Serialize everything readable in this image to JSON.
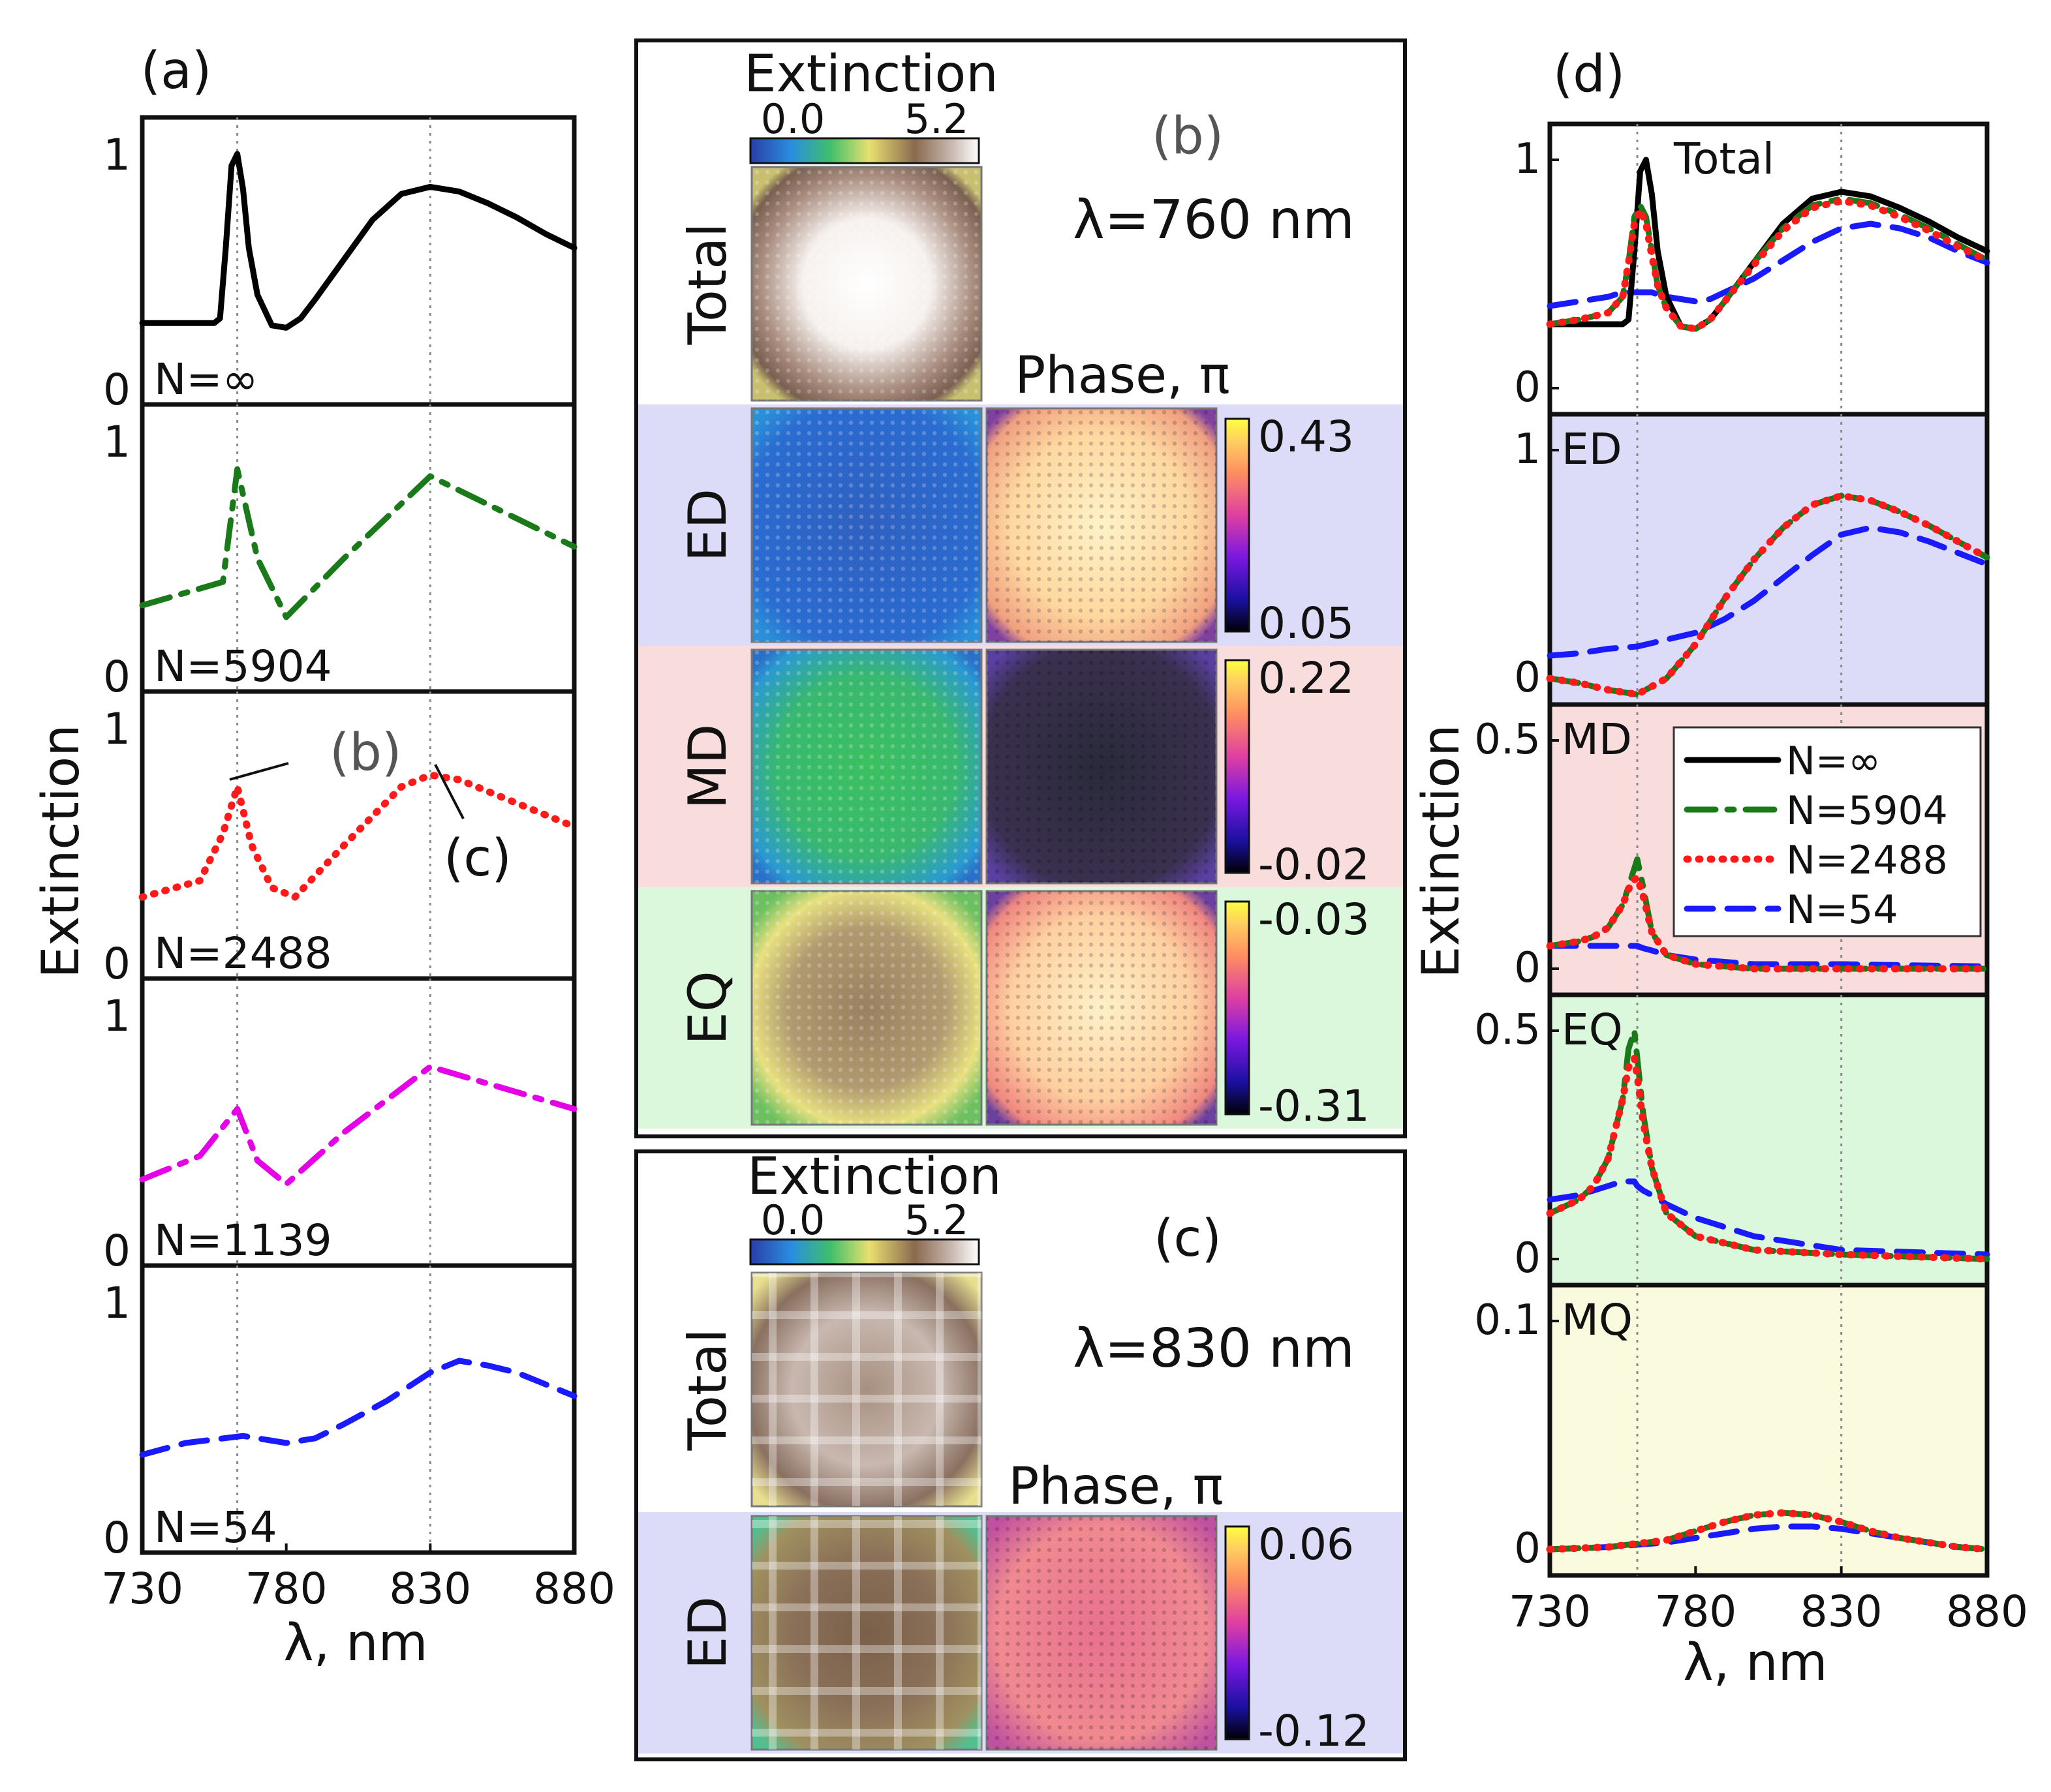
{
  "panel_a": {
    "label": "(a)",
    "ylabel": "Extinction",
    "xlabel": "λ, nm",
    "xticks": [
      "730",
      "780",
      "830",
      "880"
    ],
    "yticks": [
      "0",
      "1"
    ],
    "xlim": [
      730,
      880
    ],
    "vlines": [
      763,
      830
    ],
    "annotations": [
      "(b)",
      "(c)"
    ],
    "rows": [
      {
        "label": "N=∞",
        "color": "#000000",
        "style": "solid",
        "x": [
          730,
          740,
          750,
          755,
          757,
          759,
          761,
          763,
          765,
          767,
          770,
          775,
          780,
          785,
          790,
          800,
          810,
          820,
          830,
          840,
          850,
          860,
          870,
          880
        ],
        "y": [
          0.28,
          0.28,
          0.28,
          0.28,
          0.3,
          0.6,
          0.95,
          1.0,
          0.85,
          0.6,
          0.4,
          0.27,
          0.26,
          0.3,
          0.38,
          0.55,
          0.72,
          0.83,
          0.86,
          0.84,
          0.79,
          0.73,
          0.66,
          0.6
        ]
      },
      {
        "label": "N=5904",
        "color": "#1a7a1a",
        "style": "dashdot",
        "x": [
          730,
          758,
          763,
          770,
          780,
          800,
          830,
          880
        ],
        "y": [
          0.3,
          0.4,
          0.88,
          0.5,
          0.25,
          0.5,
          0.85,
          0.55
        ]
      },
      {
        "label": "N=2488",
        "color": "#ff1a1a",
        "style": "dotted",
        "x": [
          730,
          750,
          758,
          763,
          768,
          775,
          783,
          800,
          820,
          830,
          840,
          860,
          880
        ],
        "y": [
          0.28,
          0.35,
          0.55,
          0.75,
          0.5,
          0.32,
          0.28,
          0.5,
          0.75,
          0.8,
          0.78,
          0.68,
          0.58
        ]
      },
      {
        "label": "N=1139",
        "color": "#e600e6",
        "style": "dashdot",
        "x": [
          730,
          750,
          763,
          770,
          780,
          800,
          830,
          880
        ],
        "y": [
          0.3,
          0.4,
          0.6,
          0.38,
          0.28,
          0.5,
          0.78,
          0.6
        ]
      },
      {
        "label": "N=54",
        "color": "#1a1aff",
        "style": "dashed",
        "x": [
          730,
          745,
          765,
          780,
          790,
          800,
          815,
          830,
          840,
          850,
          860,
          870,
          880
        ],
        "y": [
          0.35,
          0.4,
          0.43,
          0.4,
          0.42,
          0.48,
          0.58,
          0.7,
          0.75,
          0.73,
          0.7,
          0.65,
          0.6
        ]
      }
    ]
  },
  "panel_b": {
    "label": "(b)",
    "wavelength": "λ=760 nm",
    "ext_title": "Extinction",
    "cbar_min": "0.0",
    "cbar_max": "5.2",
    "phase_title": "Phase, π",
    "rows": [
      {
        "name": "Total",
        "bg": "#ffffff"
      },
      {
        "name": "ED",
        "bg": "#dcdcf8",
        "phase_max": "0.43",
        "phase_min": "0.05"
      },
      {
        "name": "MD",
        "bg": "#f9dcdc",
        "phase_max": "0.22",
        "phase_min": "-0.02"
      },
      {
        "name": "EQ",
        "bg": "#dcf8dc",
        "phase_max": "-0.03",
        "phase_min": "-0.31"
      }
    ]
  },
  "panel_c": {
    "label": "(c)",
    "wavelength": "λ=830 nm",
    "ext_title": "Extinction",
    "cbar_min": "0.0",
    "cbar_max": "5.2",
    "phase_title": "Phase, π",
    "rows": [
      {
        "name": "Total",
        "bg": "#ffffff"
      },
      {
        "name": "ED",
        "bg": "#dcdcf8",
        "phase_max": "0.06",
        "phase_min": "-0.12"
      }
    ]
  },
  "panel_d": {
    "label": "(d)",
    "ylabel": "Extinction",
    "xlabel": "λ, nm",
    "xticks": [
      "730",
      "780",
      "830",
      "880"
    ],
    "xlim": [
      730,
      880
    ],
    "vlines": [
      760,
      830
    ],
    "legend": [
      "N=∞",
      "N=5904",
      "N=2488",
      "N=54"
    ],
    "series_styles": [
      {
        "name": "N=∞",
        "color": "#000000",
        "style": "solid"
      },
      {
        "name": "N=5904",
        "color": "#1a7a1a",
        "style": "dashdot"
      },
      {
        "name": "N=2488",
        "color": "#ff1a1a",
        "style": "dotted"
      },
      {
        "name": "N=54",
        "color": "#1a1aff",
        "style": "dashed"
      }
    ],
    "rows": [
      {
        "label": "Total",
        "bg": "#ffffff",
        "ymax": 1.1,
        "yticks": [
          "0",
          "1"
        ],
        "ytick_vals": [
          0,
          1
        ],
        "x": [
          730,
          740,
          750,
          755,
          757,
          759,
          761,
          763,
          765,
          767,
          770,
          775,
          780,
          785,
          790,
          800,
          810,
          820,
          830,
          840,
          850,
          860,
          870,
          880
        ],
        "series": [
          [
            0.28,
            0.28,
            0.28,
            0.28,
            0.3,
            0.6,
            0.95,
            1.0,
            0.85,
            0.6,
            0.4,
            0.27,
            0.26,
            0.3,
            0.38,
            0.55,
            0.72,
            0.83,
            0.86,
            0.84,
            0.79,
            0.73,
            0.66,
            0.6
          ],
          [
            0.28,
            0.3,
            0.33,
            0.4,
            0.55,
            0.75,
            0.8,
            0.75,
            0.6,
            0.45,
            0.35,
            0.27,
            0.26,
            0.3,
            0.38,
            0.55,
            0.7,
            0.8,
            0.83,
            0.81,
            0.76,
            0.7,
            0.63,
            0.56
          ],
          [
            0.28,
            0.3,
            0.33,
            0.4,
            0.55,
            0.72,
            0.78,
            0.72,
            0.58,
            0.45,
            0.35,
            0.27,
            0.26,
            0.3,
            0.38,
            0.54,
            0.69,
            0.79,
            0.82,
            0.8,
            0.75,
            0.69,
            0.62,
            0.56
          ],
          [
            0.36,
            0.38,
            0.4,
            0.42,
            0.42,
            0.42,
            0.42,
            0.42,
            0.42,
            0.41,
            0.4,
            0.39,
            0.38,
            0.39,
            0.42,
            0.48,
            0.56,
            0.64,
            0.7,
            0.72,
            0.7,
            0.66,
            0.6,
            0.55
          ]
        ]
      },
      {
        "label": "ED",
        "bg": "#dcdcf8",
        "ymax": 1.1,
        "yticks": [
          "0",
          "1"
        ],
        "ytick_vals": [
          0,
          1
        ],
        "x": [
          730,
          740,
          750,
          760,
          770,
          780,
          790,
          800,
          810,
          820,
          830,
          840,
          850,
          860,
          870,
          880
        ],
        "series": [
          [
            0.0,
            -0.02,
            -0.05,
            -0.07,
            0.0,
            0.15,
            0.35,
            0.52,
            0.66,
            0.76,
            0.8,
            0.78,
            0.73,
            0.67,
            0.6,
            0.53
          ],
          [
            0.0,
            -0.02,
            -0.05,
            -0.07,
            0.0,
            0.15,
            0.35,
            0.52,
            0.66,
            0.76,
            0.8,
            0.78,
            0.73,
            0.67,
            0.6,
            0.53
          ],
          [
            0.0,
            -0.02,
            -0.05,
            -0.07,
            0.0,
            0.15,
            0.35,
            0.52,
            0.66,
            0.76,
            0.8,
            0.78,
            0.73,
            0.67,
            0.6,
            0.53
          ],
          [
            0.1,
            0.11,
            0.13,
            0.14,
            0.17,
            0.2,
            0.26,
            0.34,
            0.44,
            0.54,
            0.63,
            0.66,
            0.64,
            0.6,
            0.55,
            0.5
          ]
        ]
      },
      {
        "label": "MD",
        "bg": "#f9dcdc",
        "ymax": 0.55,
        "yticks": [
          "0",
          "0.5"
        ],
        "ytick_vals": [
          0,
          0.5
        ],
        "x": [
          730,
          740,
          745,
          750,
          755,
          758,
          760,
          762,
          765,
          770,
          780,
          800,
          830,
          880
        ],
        "series": [
          [
            0.05,
            0.06,
            0.07,
            0.09,
            0.14,
            0.19,
            0.21,
            0.17,
            0.08,
            0.03,
            0.01,
            0.0,
            0.0,
            0.0
          ],
          [
            0.05,
            0.06,
            0.07,
            0.09,
            0.14,
            0.2,
            0.24,
            0.18,
            0.08,
            0.03,
            0.01,
            0.0,
            0.0,
            0.0
          ],
          [
            0.05,
            0.06,
            0.07,
            0.09,
            0.14,
            0.19,
            0.2,
            0.16,
            0.08,
            0.03,
            0.01,
            0.0,
            0.0,
            0.0
          ],
          [
            0.05,
            0.05,
            0.05,
            0.05,
            0.05,
            0.05,
            0.05,
            0.045,
            0.04,
            0.03,
            0.02,
            0.01,
            0.01,
            0.005
          ]
        ]
      },
      {
        "label": "EQ",
        "bg": "#dcf8dc",
        "ymax": 0.55,
        "yticks": [
          "0",
          "0.5"
        ],
        "ytick_vals": [
          0,
          0.5
        ],
        "x": [
          730,
          740,
          745,
          750,
          755,
          757,
          759,
          760,
          762,
          765,
          770,
          780,
          800,
          830,
          880
        ],
        "series": [
          [
            0.1,
            0.13,
            0.16,
            0.22,
            0.35,
            0.43,
            0.46,
            0.42,
            0.32,
            0.2,
            0.1,
            0.05,
            0.02,
            0.01,
            0.0
          ],
          [
            0.1,
            0.13,
            0.16,
            0.22,
            0.35,
            0.46,
            0.5,
            0.44,
            0.32,
            0.2,
            0.1,
            0.05,
            0.02,
            0.01,
            0.0
          ],
          [
            0.1,
            0.13,
            0.16,
            0.22,
            0.35,
            0.42,
            0.44,
            0.4,
            0.3,
            0.2,
            0.1,
            0.05,
            0.02,
            0.01,
            0.0
          ],
          [
            0.13,
            0.14,
            0.15,
            0.16,
            0.17,
            0.17,
            0.17,
            0.16,
            0.15,
            0.14,
            0.12,
            0.09,
            0.05,
            0.02,
            0.01
          ]
        ]
      },
      {
        "label": "MQ",
        "bg": "#fafade",
        "ymax": 0.11,
        "yticks": [
          "0",
          "0.1"
        ],
        "ytick_vals": [
          0,
          0.1
        ],
        "x": [
          730,
          750,
          770,
          780,
          790,
          800,
          810,
          820,
          830,
          840,
          850,
          860,
          870,
          880
        ],
        "series": [
          [
            0.0,
            0.001,
            0.004,
            0.008,
            0.012,
            0.015,
            0.016,
            0.015,
            0.012,
            0.008,
            0.005,
            0.003,
            0.001,
            0.0
          ],
          [
            0.0,
            0.001,
            0.004,
            0.008,
            0.012,
            0.015,
            0.016,
            0.015,
            0.012,
            0.008,
            0.005,
            0.003,
            0.001,
            0.0
          ],
          [
            0.0,
            0.001,
            0.004,
            0.008,
            0.012,
            0.015,
            0.016,
            0.015,
            0.012,
            0.008,
            0.005,
            0.003,
            0.001,
            0.0
          ],
          [
            0.0,
            0.001,
            0.003,
            0.005,
            0.007,
            0.009,
            0.01,
            0.01,
            0.009,
            0.007,
            0.005,
            0.003,
            0.001,
            0.0
          ]
        ]
      }
    ]
  },
  "chart_data": [
    {
      "type": "line",
      "title": "(a)",
      "xlabel": "λ, nm",
      "ylabel": "Extinction",
      "xlim": [
        730,
        880
      ],
      "note": "five stacked subplots, one per array size",
      "series": [
        {
          "name": "N=∞",
          "x": [
            730,
            755,
            759,
            763,
            767,
            775,
            780,
            790,
            800,
            810,
            820,
            830,
            840,
            850,
            860,
            870,
            880
          ],
          "values": [
            0.28,
            0.28,
            0.6,
            1.0,
            0.6,
            0.27,
            0.26,
            0.38,
            0.55,
            0.72,
            0.83,
            0.86,
            0.84,
            0.79,
            0.73,
            0.66,
            0.6
          ]
        },
        {
          "name": "N=5904",
          "x": [
            730,
            758,
            763,
            770,
            780,
            800,
            830,
            880
          ],
          "values": [
            0.3,
            0.4,
            0.88,
            0.5,
            0.25,
            0.5,
            0.85,
            0.55
          ]
        },
        {
          "name": "N=2488",
          "x": [
            730,
            750,
            758,
            763,
            768,
            775,
            783,
            800,
            820,
            830,
            840,
            860,
            880
          ],
          "values": [
            0.28,
            0.35,
            0.55,
            0.75,
            0.5,
            0.32,
            0.28,
            0.5,
            0.75,
            0.8,
            0.78,
            0.68,
            0.58
          ]
        },
        {
          "name": "N=1139",
          "x": [
            730,
            750,
            763,
            770,
            780,
            800,
            830,
            880
          ],
          "values": [
            0.3,
            0.4,
            0.6,
            0.38,
            0.28,
            0.5,
            0.78,
            0.6
          ]
        },
        {
          "name": "N=54",
          "x": [
            730,
            745,
            765,
            780,
            790,
            800,
            815,
            830,
            840,
            850,
            860,
            870,
            880
          ],
          "values": [
            0.35,
            0.4,
            0.43,
            0.4,
            0.42,
            0.48,
            0.58,
            0.7,
            0.75,
            0.73,
            0.7,
            0.65,
            0.6
          ]
        }
      ]
    },
    {
      "type": "heatmap",
      "title": "(b) λ=760 nm",
      "colorbar_extinction": [
        0.0,
        5.2
      ],
      "phase_ranges": {
        "ED": [
          0.05,
          0.43
        ],
        "MD": [
          -0.02,
          0.22
        ],
        "EQ": [
          -0.31,
          -0.03
        ]
      },
      "rows": [
        "Total",
        "ED",
        "MD",
        "EQ"
      ]
    },
    {
      "type": "heatmap",
      "title": "(c) λ=830 nm",
      "colorbar_extinction": [
        0.0,
        5.2
      ],
      "phase_ranges": {
        "ED": [
          -0.12,
          0.06
        ]
      },
      "rows": [
        "Total",
        "ED"
      ]
    },
    {
      "type": "line",
      "title": "(d)",
      "xlabel": "λ, nm",
      "ylabel": "Extinction",
      "xlim": [
        730,
        880
      ],
      "subplots": [
        "Total",
        "ED",
        "MD",
        "EQ",
        "MQ"
      ],
      "legend": [
        "N=∞",
        "N=5904",
        "N=2488",
        "N=54"
      ]
    }
  ]
}
